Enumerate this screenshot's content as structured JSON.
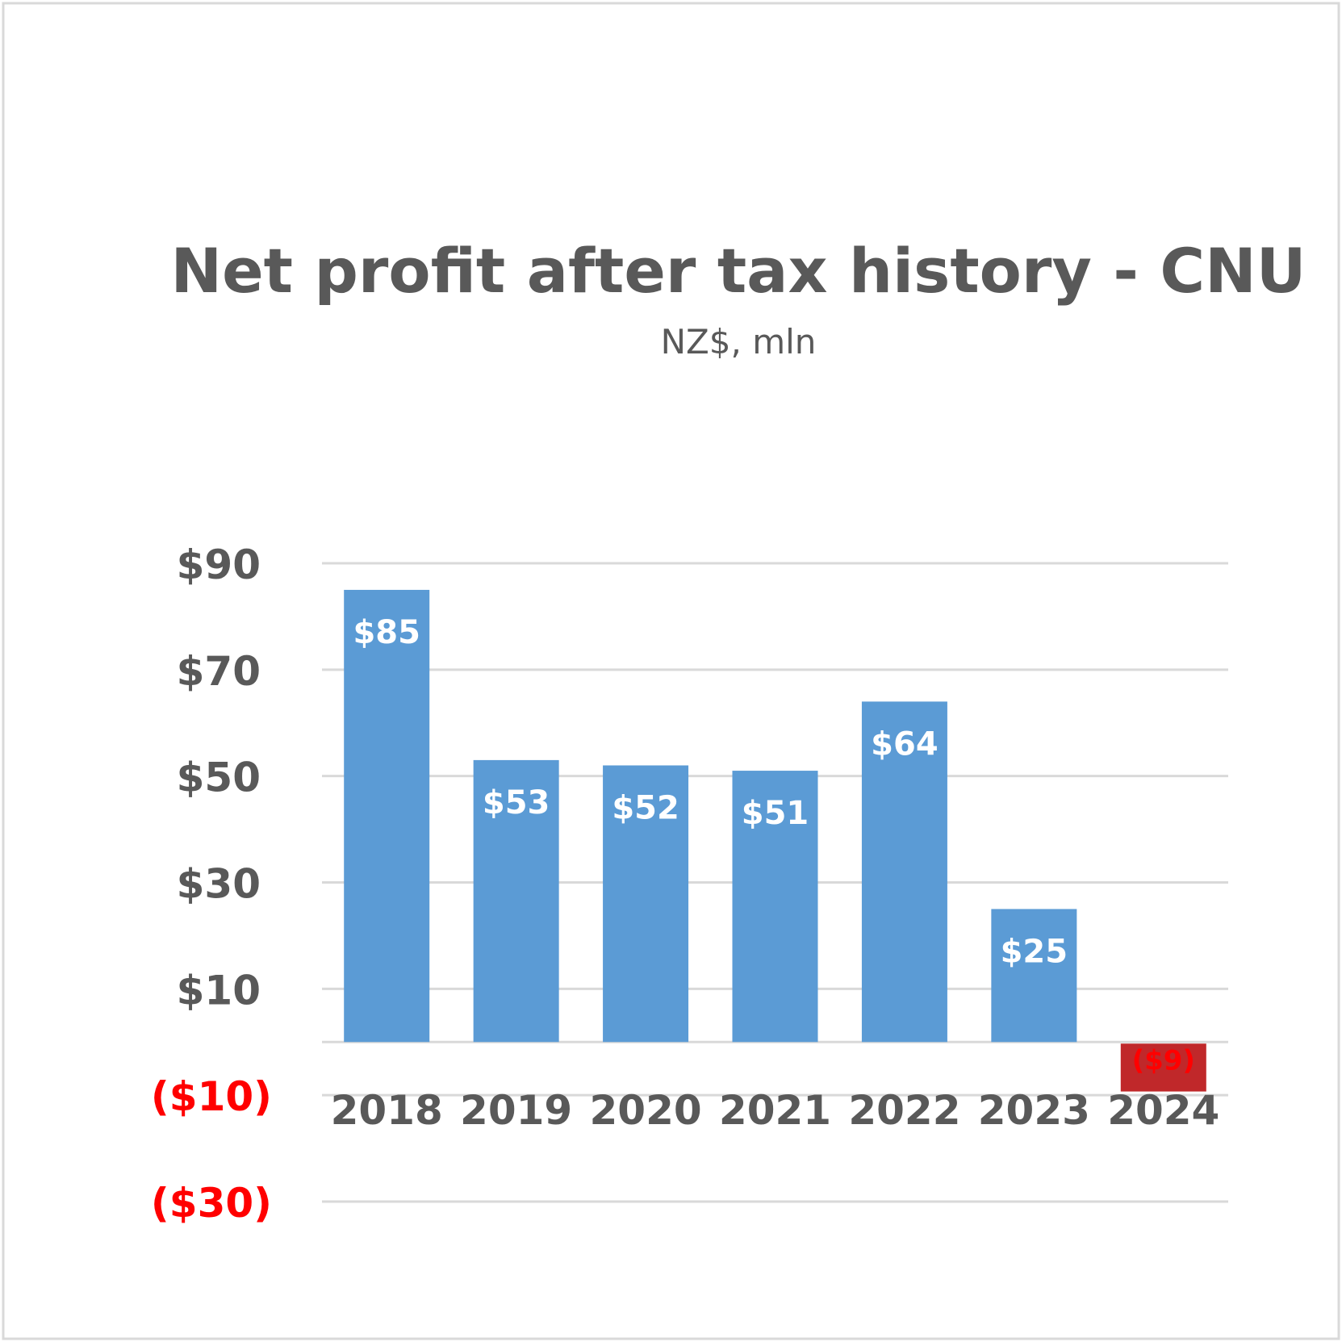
{
  "chart_data": {
    "type": "bar",
    "title": "Net profit after tax history - CNU",
    "subtitle": "NZ$, mln",
    "categories": [
      "2018",
      "2019",
      "2020",
      "2021",
      "2022",
      "2023",
      "2024"
    ],
    "values": [
      85,
      53,
      52,
      51,
      64,
      25,
      -9
    ],
    "data_labels": [
      "$85",
      "$53",
      "$52",
      "$51",
      "$64",
      "$25",
      "($9)"
    ],
    "ylim": [
      -30,
      90
    ],
    "yticks": [
      90,
      70,
      50,
      30,
      10,
      -10,
      -30
    ],
    "ytick_labels": [
      "$90",
      "$70",
      "$50",
      "$30",
      "$10",
      "($10)",
      "($30)"
    ],
    "xlabel": "",
    "ylabel": "",
    "grid": true,
    "legend": "none",
    "colors": {
      "positive_bar": "#5b9bd5",
      "negative_bar": "#c0282a",
      "negative_text": "#ff0000",
      "text": "#595959",
      "gridline": "#d9d9d9"
    }
  }
}
